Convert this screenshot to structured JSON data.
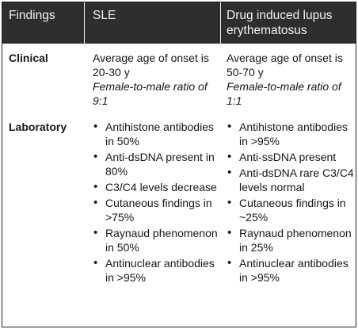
{
  "table": {
    "headers": [
      "Findings",
      "SLE",
      "Drug induced lupus erythematosus"
    ],
    "rows": [
      {
        "label": "Clinical",
        "sle": {
          "onset": "Average age of onset is 20-30 y",
          "ratio": "Female-to-male ratio of 9:1"
        },
        "dile": {
          "onset": "Average age of onset is 50-70 y",
          "ratio": "Female-to-male ratio of 1:1"
        }
      },
      {
        "label": "Laboratory",
        "sle": [
          "Antihistone antibodies in 50%",
          "Anti-dsDNA present in 80%",
          "C3/C4 levels decrease",
          "Cutaneous findings in >75%",
          "Raynaud phenomenon in 50%",
          "Antinuclear antibodies in >95%"
        ],
        "dile": [
          "Antihistone antibodies in >95%",
          "Anti-ssDNA present",
          "Anti-dsDNA rare C3/C4 levels normal",
          "Cutaneous findings in ~25%",
          "Raynaud phenomenon in 25%",
          "Antinuclear antibodies in >95%"
        ]
      }
    ]
  }
}
